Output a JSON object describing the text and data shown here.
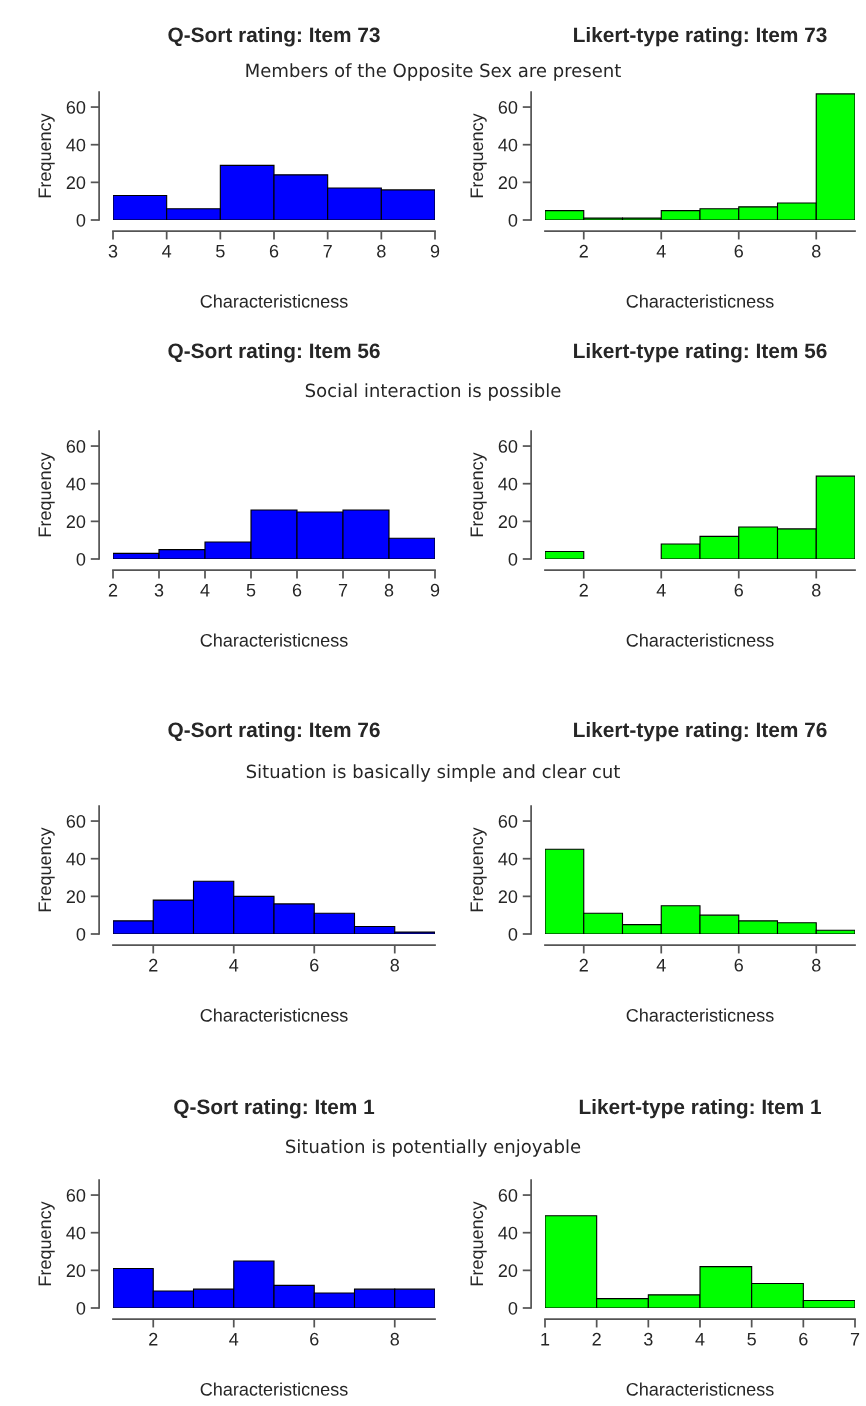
{
  "chart_data": [
    {
      "type": "histogram",
      "title": "Q-Sort rating: Item 73",
      "subtitle": "Members of the Opposite Sex are present",
      "xlabel": "Characteristicness",
      "ylabel": "Frequency",
      "bins": [
        3,
        4,
        5,
        6,
        7,
        8,
        9
      ],
      "values": [
        13,
        6,
        29,
        24,
        17,
        16
      ],
      "color": "#0000ff",
      "xlim": [
        3,
        9
      ],
      "xticks": [
        3,
        4,
        5,
        6,
        7,
        8,
        9
      ],
      "ylim": [
        0,
        68
      ],
      "yticks": [
        0,
        20,
        40,
        60
      ],
      "grid": false
    },
    {
      "type": "histogram",
      "title": "Likert-type rating: Item 73",
      "xlabel": "Characteristicness",
      "ylabel": "Frequency",
      "bins": [
        1,
        2,
        3,
        4,
        5,
        6,
        7,
        8,
        9
      ],
      "values": [
        5,
        1,
        1,
        5,
        6,
        7,
        9,
        67
      ],
      "color": "#00ff00",
      "xlim": [
        1,
        9
      ],
      "xticks": [
        2,
        4,
        6,
        8
      ],
      "ylim": [
        0,
        68
      ],
      "yticks": [
        0,
        20,
        40,
        60
      ],
      "grid": false
    },
    {
      "type": "histogram",
      "title": "Q-Sort rating: Item 56",
      "subtitle": "Social interaction is possible",
      "xlabel": "Characteristicness",
      "ylabel": "Frequency",
      "bins": [
        2,
        3,
        4,
        5,
        6,
        7,
        8,
        9
      ],
      "values": [
        3,
        5,
        9,
        26,
        25,
        26,
        11
      ],
      "color": "#0000ff",
      "xlim": [
        2,
        9
      ],
      "xticks": [
        2,
        3,
        4,
        5,
        6,
        7,
        8,
        9
      ],
      "ylim": [
        0,
        68
      ],
      "yticks": [
        0,
        20,
        40,
        60
      ],
      "grid": false
    },
    {
      "type": "histogram",
      "title": "Likert-type rating: Item 56",
      "xlabel": "Characteristicness",
      "ylabel": "Frequency",
      "bins": [
        1,
        2,
        3,
        4,
        5,
        6,
        7,
        8,
        9
      ],
      "values": [
        4,
        0,
        0,
        8,
        12,
        17,
        16,
        44
      ],
      "color": "#00ff00",
      "xlim": [
        1,
        9
      ],
      "xticks": [
        2,
        4,
        6,
        8
      ],
      "ylim": [
        0,
        68
      ],
      "yticks": [
        0,
        20,
        40,
        60
      ],
      "grid": false
    },
    {
      "type": "histogram",
      "title": "Q-Sort rating: Item 76",
      "subtitle": "Situation is basically simple and clear cut",
      "xlabel": "Characteristicness",
      "ylabel": "Frequency",
      "bins": [
        1,
        2,
        3,
        4,
        5,
        6,
        7,
        8,
        9
      ],
      "values": [
        7,
        18,
        28,
        20,
        16,
        11,
        4,
        1
      ],
      "color": "#0000ff",
      "xlim": [
        1,
        9
      ],
      "xticks": [
        2,
        4,
        6,
        8
      ],
      "ylim": [
        0,
        68
      ],
      "yticks": [
        0,
        20,
        40,
        60
      ],
      "grid": false
    },
    {
      "type": "histogram",
      "title": "Likert-type rating: Item 76",
      "xlabel": "Characteristicness",
      "ylabel": "Frequency",
      "bins": [
        1,
        2,
        3,
        4,
        5,
        6,
        7,
        8,
        9
      ],
      "values": [
        45,
        11,
        5,
        15,
        10,
        7,
        6,
        2
      ],
      "color": "#00ff00",
      "xlim": [
        1,
        9
      ],
      "xticks": [
        2,
        4,
        6,
        8
      ],
      "ylim": [
        0,
        68
      ],
      "yticks": [
        0,
        20,
        40,
        60
      ],
      "grid": false
    },
    {
      "type": "histogram",
      "title": "Q-Sort rating: Item 1",
      "subtitle": "Situation is potentially enjoyable",
      "xlabel": "Characteristicness",
      "ylabel": "Frequency",
      "bins": [
        1,
        2,
        3,
        4,
        5,
        6,
        7,
        8,
        9
      ],
      "values": [
        21,
        9,
        10,
        25,
        12,
        8,
        10,
        10
      ],
      "color": "#0000ff",
      "xlim": [
        1,
        9
      ],
      "xticks": [
        2,
        4,
        6,
        8
      ],
      "ylim": [
        0,
        68
      ],
      "yticks": [
        0,
        20,
        40,
        60
      ],
      "grid": false
    },
    {
      "type": "histogram",
      "title": "Likert-type rating: Item 1",
      "xlabel": "Characteristicness",
      "ylabel": "Frequency",
      "bins": [
        1,
        2,
        3,
        4,
        5,
        6,
        7
      ],
      "values": [
        49,
        5,
        7,
        22,
        13,
        4
      ],
      "color": "#00ff00",
      "xlim": [
        1,
        7
      ],
      "xticks": [
        1,
        2,
        3,
        4,
        5,
        6,
        7
      ],
      "ylim": [
        0,
        68
      ],
      "yticks": [
        0,
        20,
        40,
        60
      ],
      "grid": false
    }
  ]
}
